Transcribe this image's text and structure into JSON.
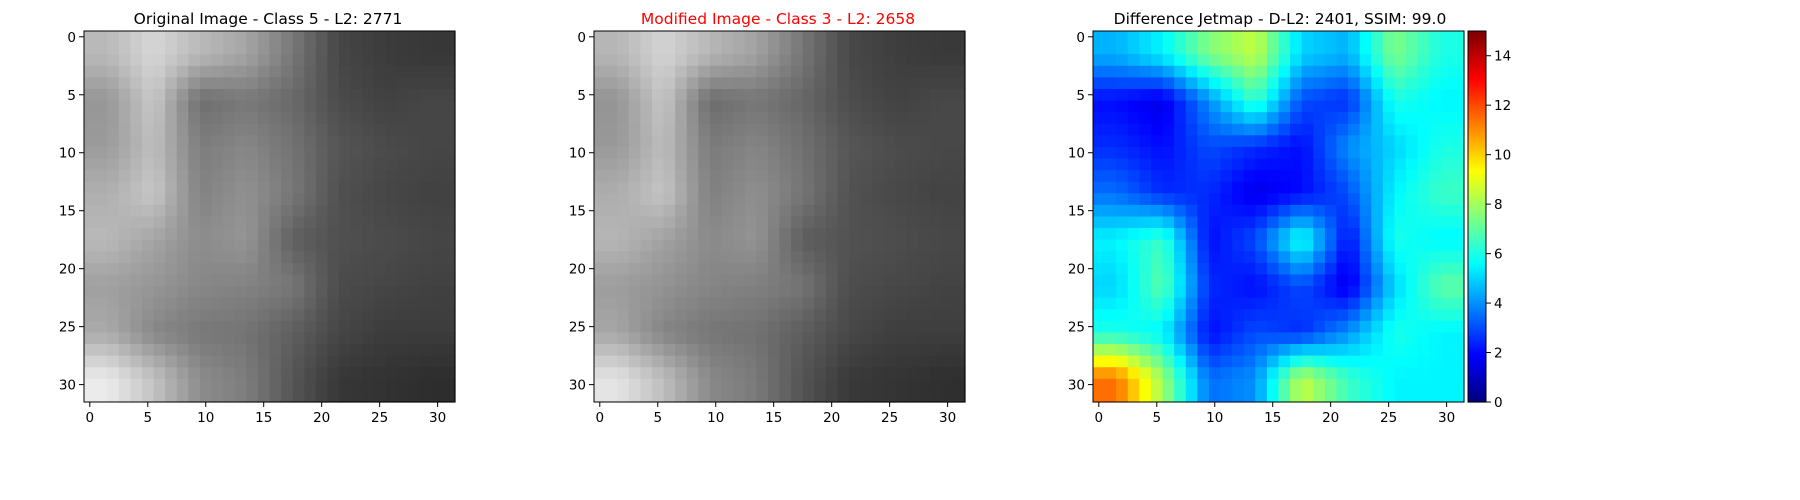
{
  "panels": {
    "original": {
      "title": "Original Image - Class 5 - L2: 2771",
      "title_color": "#000000"
    },
    "modified": {
      "title": "Modified Image - Class 3 - L2: 2658",
      "title_color": "#ff0000"
    },
    "difference": {
      "title": "Difference Jetmap - D-L2: 2401, SSIM: 99.0",
      "title_color": "#000000"
    }
  },
  "chart_data": [
    {
      "type": "heatmap",
      "title": "Original Image - Class 5 - L2: 2771",
      "colormap": "gray",
      "grid_size": [
        32,
        32
      ],
      "xticks": [
        0,
        5,
        10,
        15,
        20,
        25,
        30
      ],
      "yticks": [
        0,
        5,
        10,
        15,
        20,
        25,
        30
      ],
      "values_note_rows": "coarse 8x8 block averages (0-255)",
      "values": [
        [
          185,
          215,
          185,
          165,
          120,
          70,
          60,
          55
        ],
        [
          150,
          200,
          110,
          120,
          105,
          75,
          65,
          70
        ],
        [
          155,
          190,
          125,
          135,
          115,
          85,
          75,
          70
        ],
        [
          175,
          200,
          130,
          145,
          120,
          80,
          70,
          65
        ],
        [
          185,
          165,
          140,
          150,
          95,
          80,
          75,
          70
        ],
        [
          160,
          150,
          135,
          130,
          120,
          75,
          70,
          65
        ],
        [
          170,
          135,
          120,
          115,
          95,
          70,
          60,
          60
        ],
        [
          235,
          195,
          140,
          125,
          85,
          55,
          50,
          45
        ]
      ]
    },
    {
      "type": "heatmap",
      "title": "Modified Image - Class 3 - L2: 2658",
      "colormap": "gray",
      "grid_size": [
        32,
        32
      ],
      "xticks": [
        0,
        5,
        10,
        15,
        20,
        25,
        30
      ],
      "yticks": [
        0,
        5,
        10,
        15,
        20,
        25,
        30
      ],
      "values": [
        [
          182,
          212,
          183,
          162,
          118,
          72,
          62,
          57
        ],
        [
          148,
          198,
          108,
          118,
          103,
          77,
          66,
          72
        ],
        [
          153,
          188,
          123,
          133,
          113,
          86,
          76,
          72
        ],
        [
          173,
          197,
          128,
          143,
          118,
          82,
          72,
          67
        ],
        [
          182,
          162,
          138,
          148,
          93,
          82,
          77,
          72
        ],
        [
          157,
          147,
          133,
          128,
          117,
          77,
          72,
          67
        ],
        [
          166,
          132,
          118,
          113,
          93,
          72,
          62,
          62
        ],
        [
          228,
          190,
          137,
          122,
          83,
          57,
          52,
          47
        ]
      ]
    },
    {
      "type": "heatmap",
      "title": "Difference Jetmap - D-L2: 2401, SSIM: 99.0",
      "colormap": "jet",
      "grid_size": [
        32,
        32
      ],
      "vmin": 0,
      "vmax": 15,
      "xticks": [
        0,
        5,
        10,
        15,
        20,
        25,
        30
      ],
      "yticks": [
        0,
        5,
        10,
        15,
        20,
        25,
        30
      ],
      "colorbar_ticks": [
        0,
        2,
        4,
        6,
        8,
        10,
        12,
        14
      ],
      "values": [
        [
          4.5,
          5.5,
          7.5,
          8.5,
          5,
          4.5,
          7.5,
          6
        ],
        [
          2,
          1.5,
          4,
          6.5,
          3,
          2.5,
          6,
          5.5
        ],
        [
          2.5,
          2,
          3,
          2.5,
          2,
          4,
          5,
          6
        ],
        [
          3.5,
          2.5,
          2.5,
          1.5,
          2,
          3,
          5.5,
          6.5
        ],
        [
          5.5,
          6.5,
          2,
          3,
          6,
          2,
          6,
          5.5
        ],
        [
          5,
          7,
          2.5,
          2,
          3,
          1.5,
          5,
          7
        ],
        [
          6,
          5.5,
          2,
          3,
          2.5,
          4,
          6,
          5.5
        ],
        [
          11.5,
          8,
          3.5,
          4,
          8.5,
          6.5,
          5.5,
          5.5
        ]
      ]
    }
  ]
}
